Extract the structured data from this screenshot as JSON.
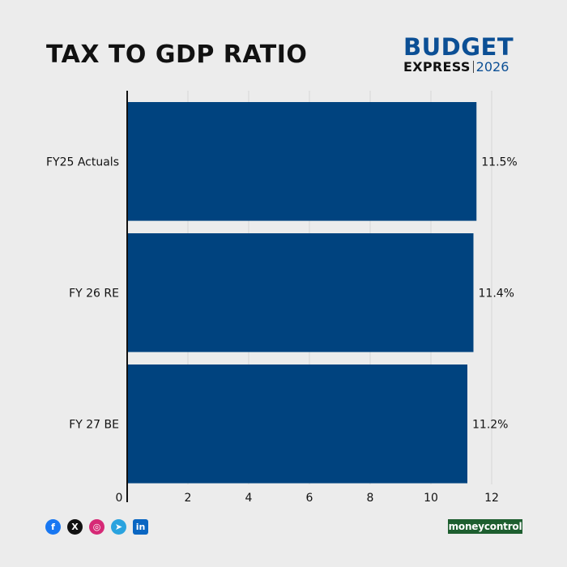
{
  "header": {
    "title": "TAX TO GDP RATIO",
    "logo_top": "BUDGET",
    "logo_express": "EXPRESS",
    "logo_year": "2026"
  },
  "footer": {
    "brand": "moneycontrol",
    "social_icons": [
      "facebook-icon",
      "x-icon",
      "instagram-icon",
      "telegram-icon",
      "linkedin-icon"
    ]
  },
  "chart_data": {
    "type": "bar",
    "orientation": "horizontal",
    "title": "TAX TO GDP RATIO",
    "xlabel": "",
    "ylabel": "",
    "categories": [
      "FY25 Actuals",
      "FY 26 RE",
      "FY 27 BE"
    ],
    "values": [
      11.5,
      11.4,
      11.2
    ],
    "data_labels": [
      "11.5%",
      "11.4%",
      "11.2%"
    ],
    "xlim": [
      0,
      12
    ],
    "x_ticks": [
      "0",
      "2",
      "4",
      "6",
      "8",
      "10",
      "12"
    ],
    "bar_color": "#00437f",
    "grid": true,
    "legend": "none"
  }
}
